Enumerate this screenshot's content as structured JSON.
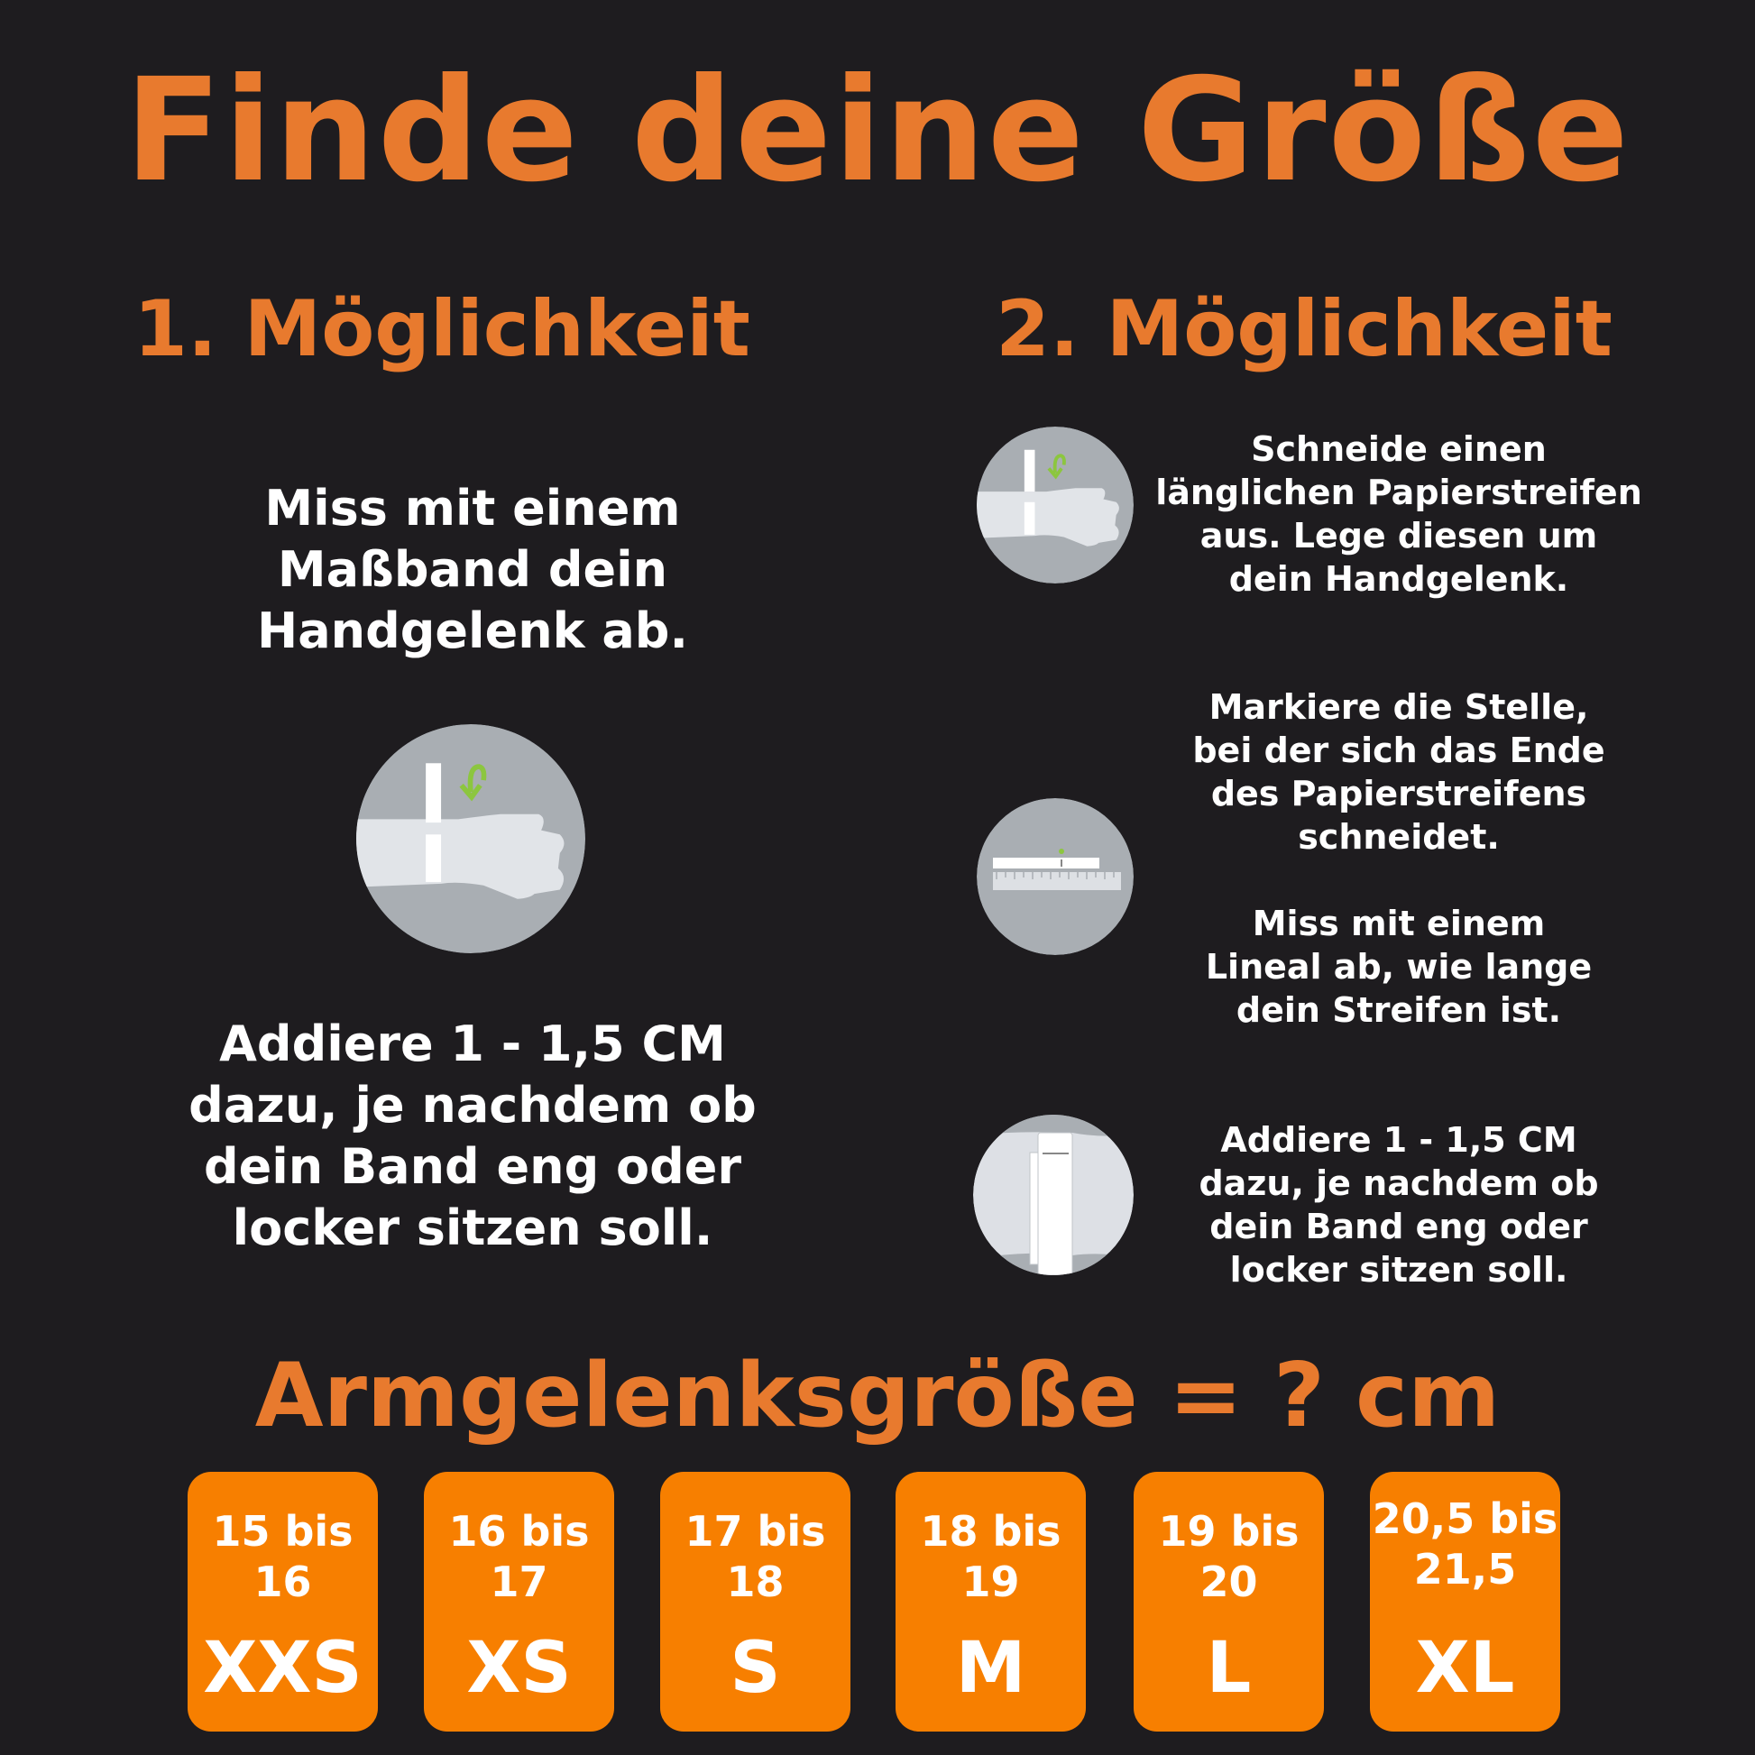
{
  "title": "Finde deine Größe",
  "option1": {
    "heading": "1. Möglichkeit",
    "step1": [
      "Miss mit einem",
      "Maßband dein",
      "Handgelenk ab."
    ],
    "step2": [
      "Addiere 1 - 1,5 CM",
      "dazu, je nachdem ob",
      "dein Band eng oder",
      "locker sitzen soll."
    ],
    "icon": "wrist-measuring-tape-icon"
  },
  "option2": {
    "heading": "2. Möglichkeit",
    "step1": [
      "Schneide einen",
      "länglichen Papierstreifen",
      "aus. Lege diesen um",
      "dein Handgelenk."
    ],
    "step2": [
      "Markiere die Stelle,",
      "bei der sich das Ende",
      "des Papierstreifens",
      "schneidet."
    ],
    "step3": [
      "Miss mit einem",
      "Lineal ab, wie lange",
      "dein Streifen ist."
    ],
    "step4": [
      "Addiere 1 - 1,5 CM",
      "dazu, je nachdem ob",
      "dein Band eng oder",
      "locker sitzen soll."
    ],
    "icons": [
      "wrist-paper-strip-icon",
      "ruler-icon",
      "paper-strip-icon"
    ]
  },
  "formula": "Armgelenksgröße = ? cm",
  "sizes": [
    {
      "range": [
        "15 bis",
        "16"
      ],
      "label": "XXS"
    },
    {
      "range": [
        "16 bis",
        "17"
      ],
      "label": "XS"
    },
    {
      "range": [
        "17 bis",
        "18"
      ],
      "label": "S"
    },
    {
      "range": [
        "18 bis",
        "19"
      ],
      "label": "M"
    },
    {
      "range": [
        "19 bis",
        "20"
      ],
      "label": "L"
    },
    {
      "range": [
        "20,5 bis",
        "21,5"
      ],
      "label": "XL"
    }
  ],
  "colors": {
    "background": "#1e1c1f",
    "accent": "#e87a2e",
    "box": "#f77f00",
    "circle": "#a9aeb3",
    "arrow": "#8cc63f"
  }
}
